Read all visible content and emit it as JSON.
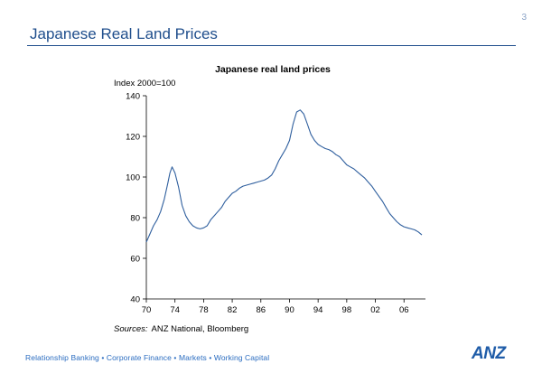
{
  "slide": {
    "page_number": "3",
    "title": "Japanese Real Land Prices",
    "footer_tagline": "Relationship Banking • Corporate Finance • Markets • Working Capital",
    "logo_text": "ANZ"
  },
  "colors": {
    "title": "#1f4e8c",
    "line": "#2f5f9e",
    "footer": "#2a6cc0"
  },
  "chart_data": {
    "type": "line",
    "title": "Japanese real land prices",
    "ylabel": "Index 2000=100",
    "xlabel": "",
    "source_prefix": "Sources:",
    "source_text": "ANZ National, Bloomberg",
    "xlim": [
      1970,
      2009
    ],
    "ylim": [
      40,
      140
    ],
    "x_ticks": [
      1970,
      1974,
      1978,
      1982,
      1986,
      1990,
      1994,
      1998,
      2002,
      2006
    ],
    "x_tick_labels": [
      "70",
      "74",
      "78",
      "82",
      "86",
      "90",
      "94",
      "98",
      "02",
      "06"
    ],
    "y_ticks": [
      40,
      60,
      80,
      100,
      120,
      140
    ],
    "y_tick_labels": [
      "40",
      "60",
      "80",
      "100",
      "120",
      "140"
    ],
    "grid": false,
    "series": [
      {
        "x": [
          1970,
          1970.5,
          1971,
          1971.5,
          1972,
          1972.5,
          1973,
          1973.3,
          1973.6,
          1974,
          1974.5,
          1975,
          1975.5,
          1976,
          1976.5,
          1977,
          1977.5,
          1978,
          1978.5,
          1979,
          1979.5,
          1980,
          1980.5,
          1981,
          1981.5,
          1982,
          1982.5,
          1983,
          1983.5,
          1984,
          1984.5,
          1985,
          1985.5,
          1986,
          1986.5,
          1987,
          1987.5,
          1988,
          1988.5,
          1989,
          1989.5,
          1990,
          1990.5,
          1991,
          1991.5,
          1992,
          1992.5,
          1993,
          1993.5,
          1994,
          1994.5,
          1995,
          1995.5,
          1996,
          1996.5,
          1997,
          1997.5,
          1998,
          1998.5,
          1999,
          1999.5,
          2000,
          2000.5,
          2001,
          2001.5,
          2002,
          2002.5,
          2003,
          2003.5,
          2004,
          2004.5,
          2005,
          2005.5,
          2006,
          2006.5,
          2007,
          2007.5,
          2008,
          2008.5
        ],
        "values": [
          68,
          72,
          76,
          79,
          83,
          89,
          97,
          102,
          105,
          102,
          95,
          86,
          81,
          78,
          76,
          75,
          74.5,
          75,
          76,
          79,
          81,
          83,
          85,
          88,
          90,
          92,
          93,
          94.5,
          95.5,
          96,
          96.5,
          97,
          97.5,
          98,
          98.5,
          99.5,
          101,
          104,
          108,
          111,
          114,
          118,
          126,
          132,
          133,
          131,
          126,
          121,
          118,
          116,
          115,
          114,
          113.5,
          112.5,
          111,
          110,
          108,
          106,
          105,
          104,
          102.5,
          101,
          99.5,
          97.5,
          95.5,
          93,
          90.5,
          88,
          85,
          82,
          80,
          78,
          76.5,
          75.5,
          75,
          74.5,
          74,
          73,
          71.5
        ]
      }
    ]
  }
}
